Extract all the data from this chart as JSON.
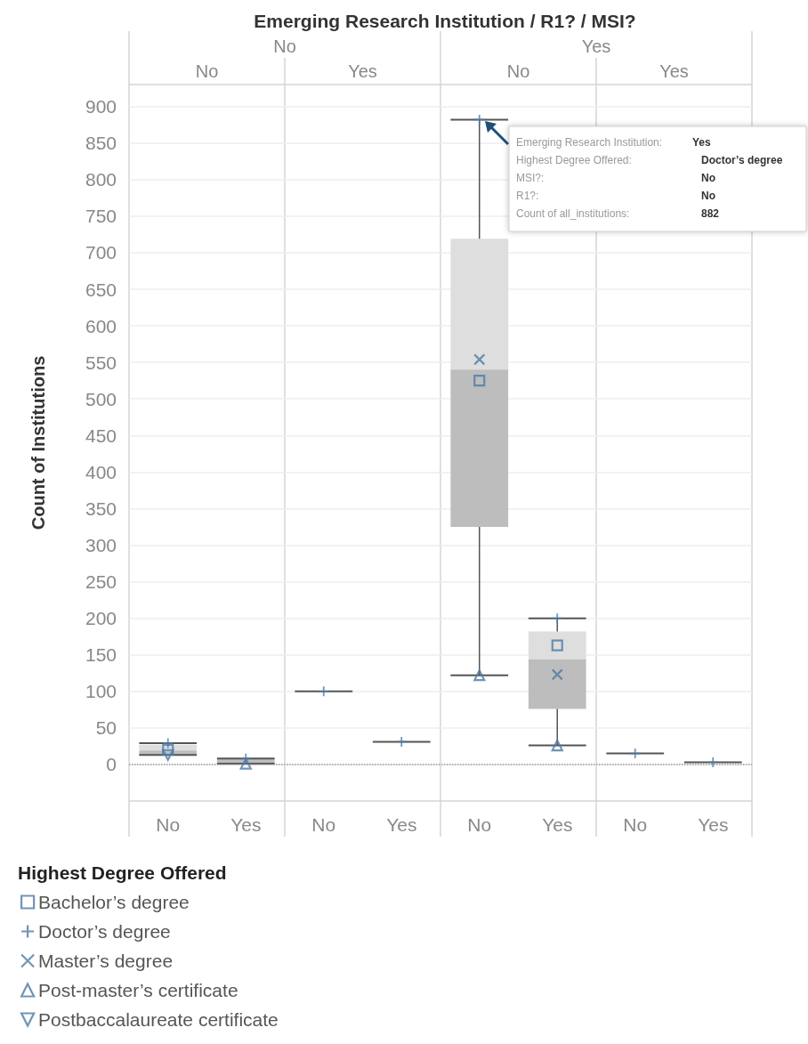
{
  "chart_data": {
    "type": "box",
    "title": "Emerging Research Institution / R1? / MSI?",
    "ylabel": "Count of Institutions",
    "legend_title": "Highest Degree Offered",
    "categories": [
      "No",
      "Yes",
      "No",
      "Yes",
      "No",
      "Yes",
      "No",
      "Yes"
    ],
    "boxes": [
      {
        "low": 13,
        "q1": 13,
        "median": 19,
        "q3": 27,
        "high": 29
      },
      {
        "low": 1,
        "q1": 1,
        "median": 8,
        "q3": 8,
        "high": 8
      },
      {
        "low": 100,
        "q1": 100,
        "median": 100,
        "q3": 100,
        "high": 100
      },
      {
        "low": 31,
        "q1": 31,
        "median": 31,
        "q3": 31,
        "high": 31
      },
      {
        "low": 122,
        "q1": 325,
        "median": 540,
        "q3": 719,
        "high": 882
      },
      {
        "low": 26,
        "q1": 76,
        "median": 144,
        "q3": 182,
        "high": 200
      },
      {
        "low": 15,
        "q1": 15,
        "median": 15,
        "q3": 15,
        "high": 15
      },
      {
        "low": 3,
        "q1": 3,
        "median": 3,
        "q3": 3,
        "high": 3
      }
    ],
    "series": [
      {
        "name": "Bachelor’s degree",
        "type": "scatter",
        "marker": "square",
        "color": "#4e79a7",
        "values": [
          20,
          null,
          null,
          null,
          525,
          163,
          null,
          null
        ]
      },
      {
        "name": "Doctor’s degree",
        "type": "scatter",
        "marker": "cross",
        "color": "#4e79a7",
        "values": [
          29,
          8,
          100,
          31,
          882,
          200,
          15,
          3
        ]
      },
      {
        "name": "Master’s degree",
        "type": "scatter",
        "marker": "x",
        "color": "#4e79a7",
        "values": [
          null,
          null,
          null,
          null,
          554,
          123,
          null,
          null
        ]
      },
      {
        "name": "Post-master’s certificate",
        "type": "scatter",
        "marker": "triangle",
        "color": "#4e79a7",
        "values": [
          null,
          1,
          null,
          null,
          122,
          26,
          null,
          null
        ]
      },
      {
        "name": "Postbaccalaureate certificate",
        "type": "scatter",
        "marker": "triangle-down",
        "color": "#4e79a7",
        "values": [
          13,
          null,
          null,
          null,
          null,
          null,
          null,
          null
        ]
      }
    ],
    "ylim": [
      -50,
      930
    ],
    "yticks": [
      0,
      50,
      100,
      150,
      200,
      250,
      300,
      350,
      400,
      450,
      500,
      550,
      600,
      650,
      700,
      750,
      800,
      850,
      900
    ],
    "grid": "y",
    "colors": [
      "#bdbdbd",
      "#bdbdbd",
      "#555555",
      "#555555",
      "#bdbdbd",
      "#bdbdbd",
      "#555555",
      "#555555"
    ],
    "legend": "bottom left",
    "ref_lines": [
      {
        "axis": "y",
        "value": 0,
        "label": null,
        "line_style": "dotted",
        "color": "#999999"
      }
    ],
    "annotations": [
      "No",
      "Yes",
      "No",
      "Yes",
      "No",
      "Yes",
      "Emerging Research Institution: Yes",
      "Highest Degree Offered: Doctor’s degree",
      "MSI?: No",
      "R1?: No",
      "Count of all_institutions: 882"
    ]
  }
}
